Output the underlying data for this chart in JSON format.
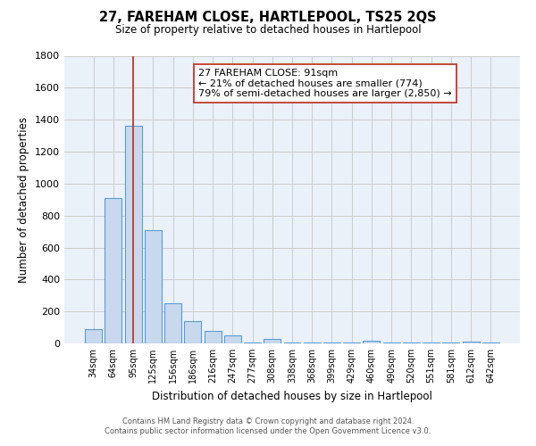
{
  "title": "27, FAREHAM CLOSE, HARTLEPOOL, TS25 2QS",
  "subtitle": "Size of property relative to detached houses in Hartlepool",
  "xlabel": "Distribution of detached houses by size in Hartlepool",
  "ylabel": "Number of detached properties",
  "bar_labels": [
    "34sqm",
    "64sqm",
    "95sqm",
    "125sqm",
    "156sqm",
    "186sqm",
    "216sqm",
    "247sqm",
    "277sqm",
    "308sqm",
    "338sqm",
    "368sqm",
    "399sqm",
    "429sqm",
    "460sqm",
    "490sqm",
    "520sqm",
    "551sqm",
    "581sqm",
    "612sqm",
    "642sqm"
  ],
  "bar_values": [
    90,
    910,
    1360,
    710,
    250,
    140,
    80,
    50,
    5,
    30,
    5,
    5,
    5,
    5,
    15,
    5,
    5,
    5,
    5,
    10,
    5
  ],
  "bar_color": "#c8d9ed",
  "bar_edge_color": "#5b9bd5",
  "ylim": [
    0,
    1800
  ],
  "yticks": [
    0,
    200,
    400,
    600,
    800,
    1000,
    1200,
    1400,
    1600,
    1800
  ],
  "property_line_x": 2,
  "property_line_color": "#c0392b",
  "annotation_title": "27 FAREHAM CLOSE: 91sqm",
  "annotation_line1": "← 21% of detached houses are smaller (774)",
  "annotation_line2": "79% of semi-detached houses are larger (2,850) →",
  "footer_line1": "Contains HM Land Registry data © Crown copyright and database right 2024.",
  "footer_line2": "Contains public sector information licensed under the Open Government Licence v3.0.",
  "background_color": "#ffffff",
  "grid_color": "#cccccc",
  "plot_bg_color": "#eaf1f9"
}
